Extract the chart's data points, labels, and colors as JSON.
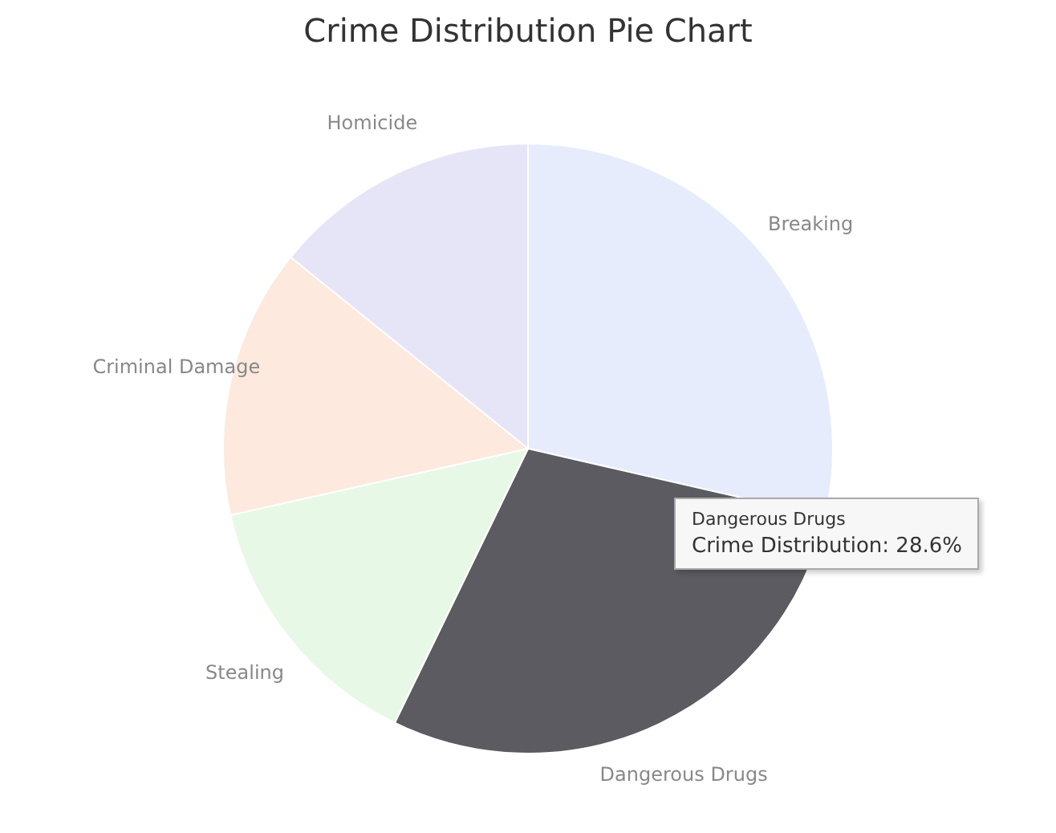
{
  "chart_data": {
    "type": "pie",
    "title": "Crime Distribution Pie Chart",
    "categories": [
      "Breaking",
      "Dangerous Drugs",
      "Stealing",
      "Criminal Damage",
      "Homicide"
    ],
    "values": [
      28.6,
      28.6,
      14.3,
      14.3,
      14.2
    ],
    "colors": [
      "#e6ecfb",
      "#5c5b61",
      "#e8f8e6",
      "#fde9dd",
      "#e6e5f8"
    ],
    "annotations": [
      "Dangerous Drugs",
      "Crime Distribution: 28.6%"
    ]
  }
}
